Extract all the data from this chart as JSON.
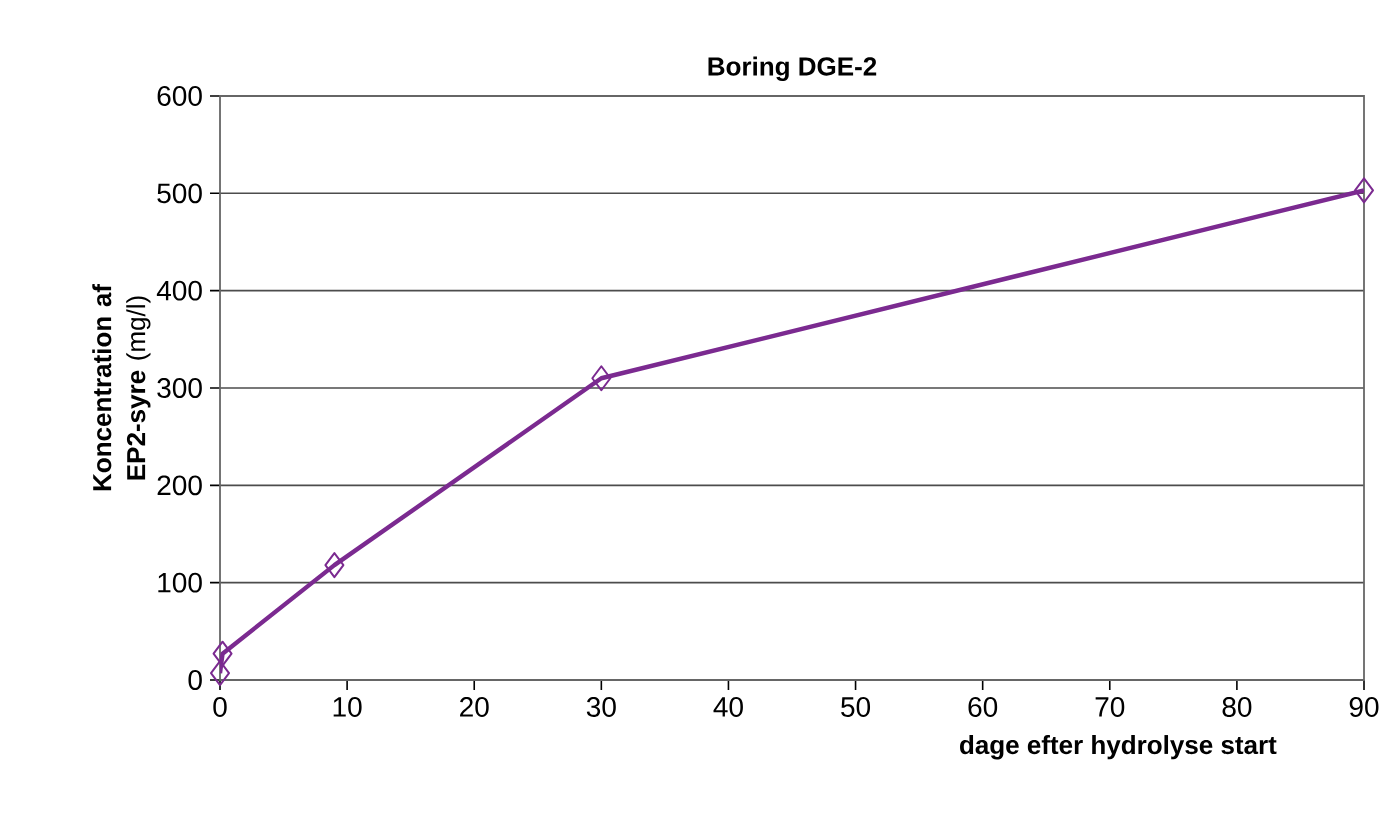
{
  "chart_data": {
    "type": "line",
    "title": "Boring DGE-2",
    "xlabel": "dage efter hydrolyse start",
    "ylabel": "**Koncentration af EP2-syre** (mg/l)",
    "x": [
      0,
      0.2,
      9,
      30,
      90
    ],
    "series": [
      {
        "color": "#7b2a90",
        "values": [
          7,
          27,
          118,
          310,
          503
        ]
      }
    ],
    "xlim": [
      0,
      90
    ],
    "xticks": [
      0,
      10,
      20,
      30,
      40,
      50,
      60,
      70,
      80,
      90
    ],
    "ylim": [
      0,
      600
    ],
    "yticks": [
      0,
      100,
      200,
      300,
      400,
      500,
      600
    ],
    "grid": "y",
    "marker": "diamond",
    "line_style": "solid"
  }
}
